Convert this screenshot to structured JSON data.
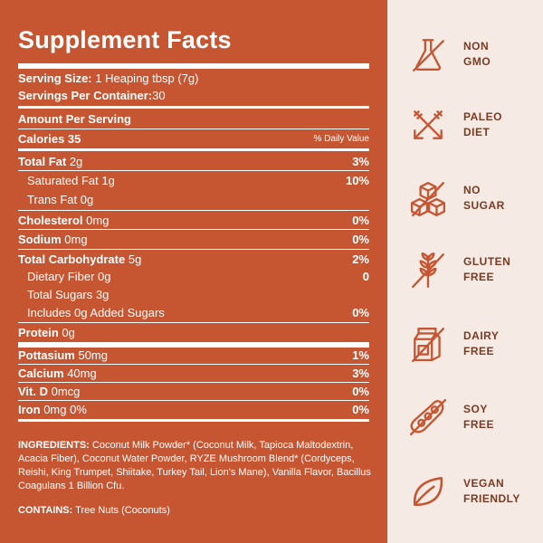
{
  "facts": {
    "title": "Supplement Facts",
    "serving_size_label": "Serving Size:",
    "serving_size_value": "1 Heaping tbsp (7g)",
    "servings_label": "Servings Per Container:",
    "servings_value": "30",
    "amount_per_serving": "Amount Per Serving",
    "calories_label": "Calories 35",
    "dv_header": "% Daily Value",
    "rows": [
      {
        "name": "Total Fat",
        "amount": "2g",
        "dv": "3%"
      },
      {
        "name": "Saturated Fat",
        "amount": "1g",
        "dv": "10%"
      },
      {
        "name": "Trans Fat",
        "amount": "0g",
        "dv": ""
      },
      {
        "name": "Cholesterol",
        "amount": "0mg",
        "dv": "0%"
      },
      {
        "name": "Sodium",
        "amount": "0mg",
        "dv": "0%"
      },
      {
        "name": "Total Carbohydrate",
        "amount": "5g",
        "dv": "2%"
      },
      {
        "name": "Dietary Fiber",
        "amount": "0g",
        "dv": "0"
      },
      {
        "name": "Total Sugars",
        "amount": "3g",
        "dv": ""
      },
      {
        "name": "Includes",
        "amount": "0g Added Sugars",
        "dv": "0%"
      },
      {
        "name": "Protein",
        "amount": "0g",
        "dv": ""
      },
      {
        "name": "Pottasium",
        "amount": "50mg",
        "dv": "1%"
      },
      {
        "name": "Calcium",
        "amount": "40mg",
        "dv": "3%"
      },
      {
        "name": "Vit. D",
        "amount": "0mcg",
        "dv": "0%"
      },
      {
        "name": "Iron",
        "amount": "0mg 0%",
        "dv": "0%"
      }
    ],
    "ingredients_label": "INGREDIENTS:",
    "ingredients_text": "Coconut Milk Powder* (Coconut Milk, Tapioca Maltodextrin, Acacia Fiber), Coconut Water Powder, RYZE Mushroom Blend* (Cordyceps, Reishi, King Trumpet, Shiitake, Turkey Tail, Lion's Mane), Vanilla Flavor, Bacillus Coagulans 1 Billion Cfu.",
    "contains_label": "CONTAINS:",
    "contains_text": "Tree Nuts (Coconuts)"
  },
  "badges": [
    {
      "icon": "flask-crossed-icon",
      "line1": "NON",
      "line2": "GMO"
    },
    {
      "icon": "crossed-arrows-icon",
      "line1": "PALEO",
      "line2": "DIET"
    },
    {
      "icon": "sugar-cubes-crossed-icon",
      "line1": "NO",
      "line2": "SUGAR"
    },
    {
      "icon": "wheat-crossed-icon",
      "line1": "GLUTEN",
      "line2": "FREE"
    },
    {
      "icon": "milk-carton-crossed-icon",
      "line1": "DAIRY",
      "line2": "FREE"
    },
    {
      "icon": "soybean-crossed-icon",
      "line1": "SOY",
      "line2": "FREE"
    },
    {
      "icon": "leaf-icon",
      "line1": "VEGAN",
      "line2": "FRIENDLY"
    }
  ],
  "colors": {
    "panel": "#c65532",
    "background": "#f6ebe4",
    "icon": "#c65532",
    "badge_text": "#7a3a23"
  }
}
